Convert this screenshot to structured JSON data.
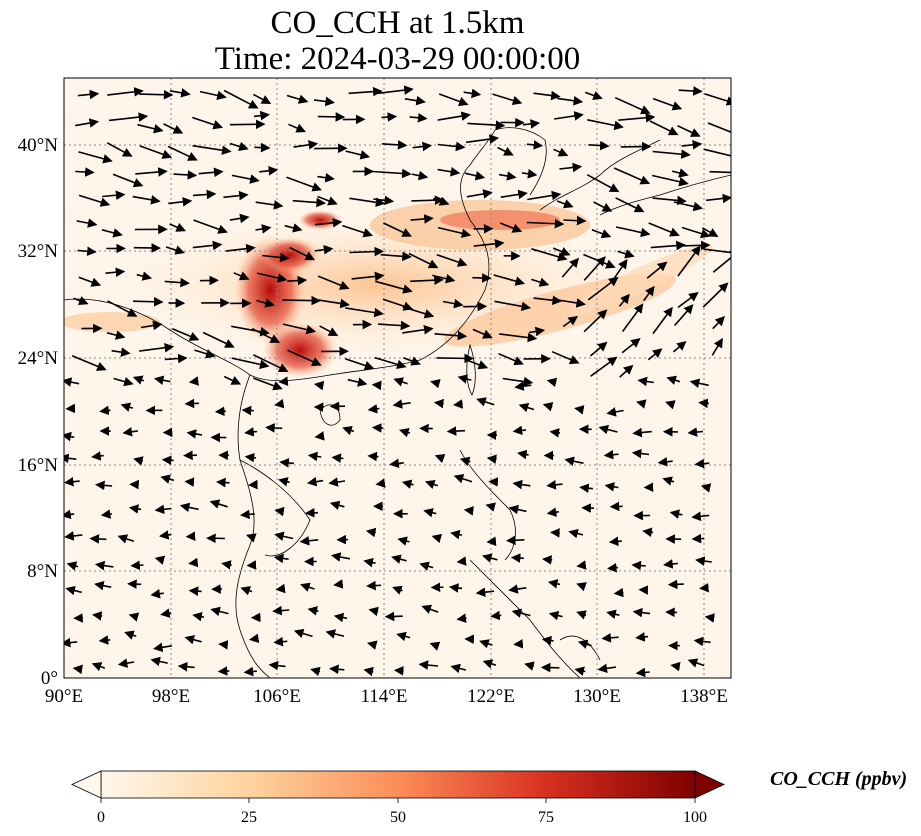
{
  "title": {
    "line1": "CO_CCH at 1.5km",
    "line2": "Time: 2024-03-29 00:00:00"
  },
  "map": {
    "lon_range": [
      90,
      140
    ],
    "lat_range": [
      0,
      45
    ],
    "lon_ticks": [
      "90°E",
      "98°E",
      "106°E",
      "114°E",
      "122°E",
      "130°E",
      "138°E"
    ],
    "lat_ticks": [
      "0°",
      "8°N",
      "16°N",
      "24°N",
      "32°N",
      "40°N"
    ],
    "gridlines": true,
    "field": "CO_CCH concentration (shaded) with wind vectors at 1.5km",
    "high_concentration_region": "Yunnan-Guizhou-Sichuan to Guangxi, plume extending east over Yellow Sea and south of Japan",
    "colors": {
      "background_low": "#fff5eb",
      "mid": "#fdae6b",
      "high": "#d94801",
      "max": "#7f0000"
    }
  },
  "colorbar": {
    "label": "CO_CCH (ppbv)",
    "ticks": [
      "0",
      "25",
      "50",
      "75",
      "100"
    ],
    "colormap": "OrRd-like",
    "extend": "both"
  }
}
